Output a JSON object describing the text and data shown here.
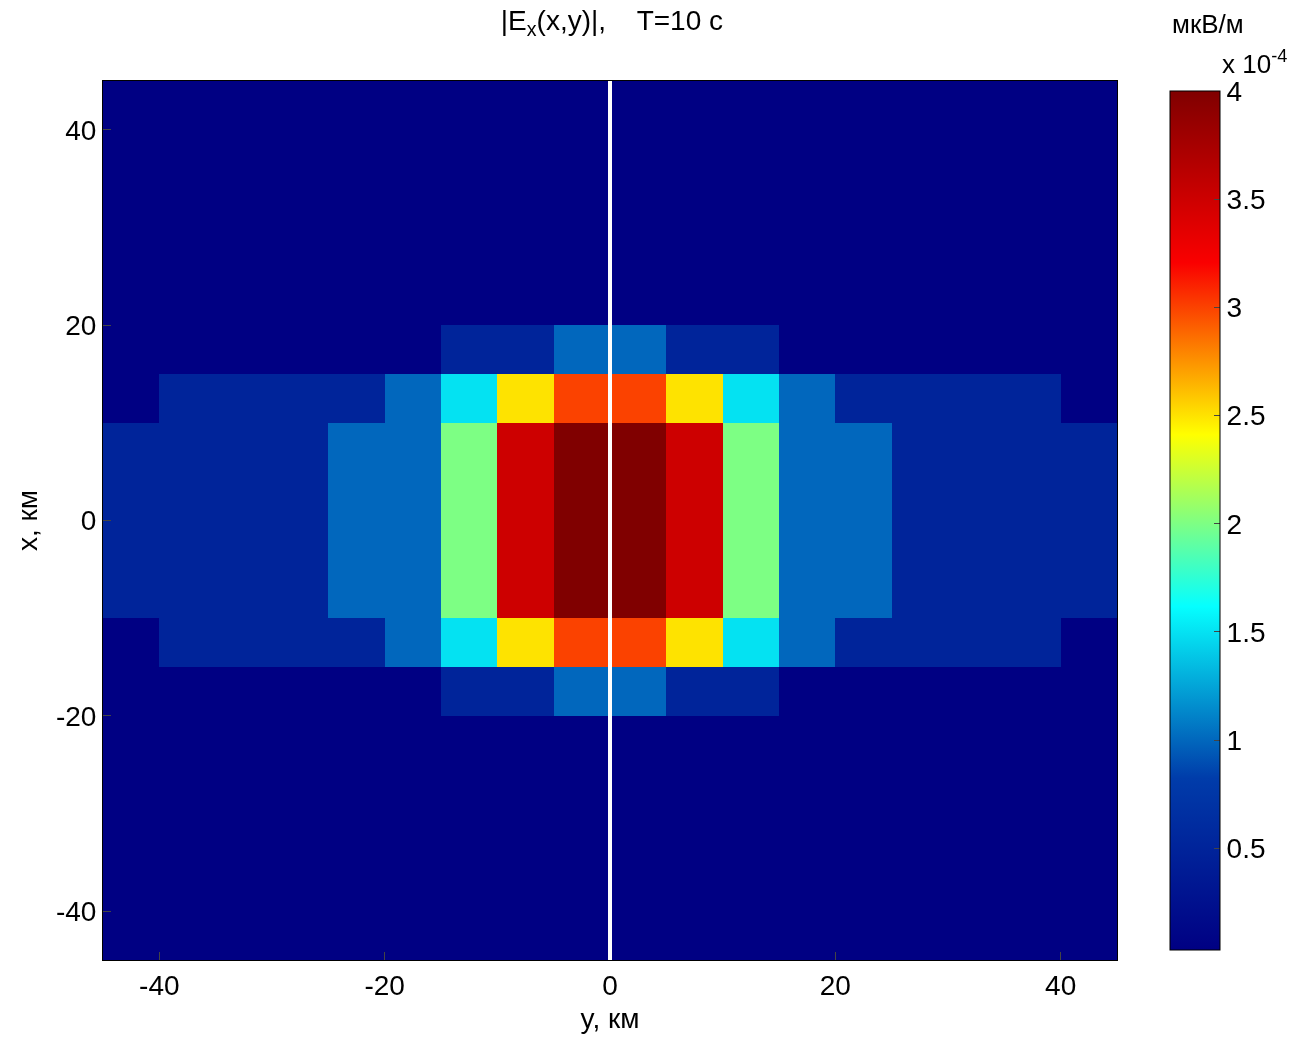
{
  "chart_data": {
    "type": "heatmap",
    "title": "|E$_{x}$(x,y)|,    T=10 с",
    "xlabel": "y, км",
    "ylabel": "x, км",
    "clabel": "мкВ/м",
    "annotations": [
      "x 10$^{-4}$"
    ],
    "x": [
      -42.5,
      -37.5,
      -32.5,
      -27.5,
      -22.5,
      -17.5,
      -12.5,
      -7.5,
      -2.5,
      2.5,
      7.5,
      12.5,
      17.5,
      22.5,
      27.5,
      32.5,
      37.5,
      42.5
    ],
    "y": [
      42.5,
      37.5,
      32.5,
      27.5,
      22.5,
      17.5,
      12.5,
      7.5,
      2.5,
      -2.5,
      -7.5,
      -12.5,
      -17.5,
      -22.5,
      -27.5,
      -32.5,
      -37.5,
      -42.5
    ],
    "cells": [
      [
        0.03,
        0.03,
        0.03,
        0.03,
        0.03,
        0.03,
        0.03,
        0.03,
        0.03,
        0.03,
        0.03,
        0.03,
        0.03,
        0.03,
        0.03,
        0.03,
        0.03,
        0.03
      ],
      [
        0.03,
        0.03,
        0.03,
        0.03,
        0.03,
        0.03,
        0.03,
        0.03,
        0.03,
        0.03,
        0.03,
        0.03,
        0.03,
        0.03,
        0.03,
        0.03,
        0.03,
        0.03
      ],
      [
        0.03,
        0.03,
        0.03,
        0.03,
        0.03,
        0.03,
        0.03,
        0.03,
        0.03,
        0.03,
        0.03,
        0.03,
        0.03,
        0.03,
        0.03,
        0.03,
        0.03,
        0.03
      ],
      [
        0.03,
        0.03,
        0.03,
        0.03,
        0.03,
        0.03,
        0.03,
        0.03,
        0.03,
        0.03,
        0.03,
        0.03,
        0.03,
        0.03,
        0.03,
        0.03,
        0.03,
        0.03
      ],
      [
        0.03,
        0.03,
        0.03,
        0.03,
        0.03,
        0.03,
        0.03,
        0.03,
        0.03,
        0.03,
        0.03,
        0.03,
        0.03,
        0.03,
        0.03,
        0.03,
        0.03,
        0.03
      ],
      [
        0.03,
        0.03,
        0.03,
        0.03,
        0.03,
        0.03,
        0.5,
        0.5,
        1,
        1,
        0.5,
        0.5,
        0.03,
        0.03,
        0.03,
        0.03,
        0.03,
        0.03
      ],
      [
        0.03,
        0.5,
        0.5,
        0.5,
        0.5,
        1,
        1.5,
        2.5,
        3,
        3,
        2.5,
        1.5,
        1,
        0.5,
        0.5,
        0.5,
        0.5,
        0.03
      ],
      [
        0.5,
        0.5,
        0.5,
        0.5,
        1,
        1,
        2,
        3.5,
        4,
        4,
        3.5,
        2,
        1,
        1,
        0.5,
        0.5,
        0.5,
        0.5
      ],
      [
        0.5,
        0.5,
        0.5,
        0.5,
        1,
        1,
        2,
        3.5,
        4,
        4,
        3.5,
        2,
        1,
        1,
        0.5,
        0.5,
        0.5,
        0.5
      ],
      [
        0.5,
        0.5,
        0.5,
        0.5,
        1,
        1,
        2,
        3.5,
        4,
        4,
        3.5,
        2,
        1,
        1,
        0.5,
        0.5,
        0.5,
        0.5
      ],
      [
        0.5,
        0.5,
        0.5,
        0.5,
        1,
        1,
        2,
        3.5,
        4,
        4,
        3.5,
        2,
        1,
        1,
        0.5,
        0.5,
        0.5,
        0.5
      ],
      [
        0.03,
        0.5,
        0.5,
        0.5,
        0.5,
        1,
        1.5,
        2.5,
        3,
        3,
        2.5,
        1.5,
        1,
        0.5,
        0.5,
        0.5,
        0.5,
        0.03
      ],
      [
        0.03,
        0.03,
        0.03,
        0.03,
        0.03,
        0.03,
        0.5,
        0.5,
        1,
        1,
        0.5,
        0.5,
        0.03,
        0.03,
        0.03,
        0.03,
        0.03,
        0.03
      ],
      [
        0.03,
        0.03,
        0.03,
        0.03,
        0.03,
        0.03,
        0.03,
        0.03,
        0.03,
        0.03,
        0.03,
        0.03,
        0.03,
        0.03,
        0.03,
        0.03,
        0.03,
        0.03
      ],
      [
        0.03,
        0.03,
        0.03,
        0.03,
        0.03,
        0.03,
        0.03,
        0.03,
        0.03,
        0.03,
        0.03,
        0.03,
        0.03,
        0.03,
        0.03,
        0.03,
        0.03,
        0.03
      ],
      [
        0.03,
        0.03,
        0.03,
        0.03,
        0.03,
        0.03,
        0.03,
        0.03,
        0.03,
        0.03,
        0.03,
        0.03,
        0.03,
        0.03,
        0.03,
        0.03,
        0.03,
        0.03
      ],
      [
        0.03,
        0.03,
        0.03,
        0.03,
        0.03,
        0.03,
        0.03,
        0.03,
        0.03,
        0.03,
        0.03,
        0.03,
        0.03,
        0.03,
        0.03,
        0.03,
        0.03,
        0.03
      ],
      [
        0.03,
        0.03,
        0.03,
        0.03,
        0.03,
        0.03,
        0.03,
        0.03,
        0.03,
        0.03,
        0.03,
        0.03,
        0.03,
        0.03,
        0.03,
        0.03,
        0.03,
        0.03
      ]
    ],
    "clim": [
      0.03,
      4
    ],
    "cticks": [
      0.5,
      1,
      1.5,
      2,
      2.5,
      3,
      3.5,
      4
    ],
    "xlim": [
      -45,
      45
    ],
    "ylim": [
      -45,
      45
    ],
    "xticks": [
      -40,
      -20,
      0,
      20,
      40
    ],
    "yticks": [
      -40,
      -20,
      0,
      20,
      40
    ],
    "ref_lines": [
      {
        "axis": "x",
        "value": 0,
        "color": "#ffffff"
      }
    ]
  }
}
